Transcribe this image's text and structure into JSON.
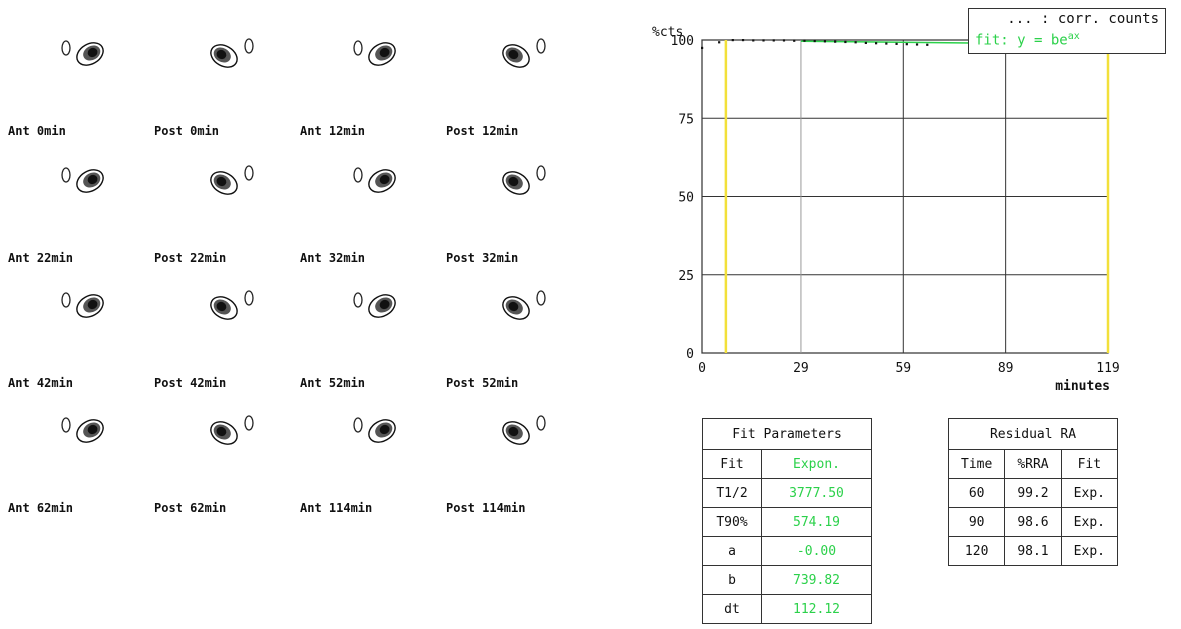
{
  "thumbnails": [
    {
      "label": "Ant 0min",
      "view": "ant"
    },
    {
      "label": "Post 0min",
      "view": "post"
    },
    {
      "label": "Ant 12min",
      "view": "ant"
    },
    {
      "label": "Post 12min",
      "view": "post"
    },
    {
      "label": "Ant 22min",
      "view": "ant"
    },
    {
      "label": "Post 22min",
      "view": "post"
    },
    {
      "label": "Ant 32min",
      "view": "ant"
    },
    {
      "label": "Post 32min",
      "view": "post"
    },
    {
      "label": "Ant 42min",
      "view": "ant"
    },
    {
      "label": "Post 42min",
      "view": "post"
    },
    {
      "label": "Ant 52min",
      "view": "ant"
    },
    {
      "label": "Post 52min",
      "view": "post"
    },
    {
      "label": "Ant 62min",
      "view": "ant"
    },
    {
      "label": "Post 62min",
      "view": "post"
    },
    {
      "label": "Ant 114min",
      "view": "ant"
    },
    {
      "label": "Post 114min",
      "view": "post"
    }
  ],
  "chart_data": {
    "type": "scatter",
    "ylabel": "%cts",
    "xlabel": "minutes",
    "xlim": [
      0,
      119
    ],
    "ylim": [
      0,
      100
    ],
    "x_ticks": [
      0,
      29,
      59,
      89,
      119
    ],
    "x_tick_labels": [
      "0",
      "29",
      "59",
      "89",
      "119"
    ],
    "y_ticks": [
      0,
      25,
      50,
      75,
      100
    ],
    "y_tick_labels": [
      "0",
      "25",
      "50",
      "75",
      "100"
    ],
    "grid": true,
    "legend_position": "top-right",
    "legend": {
      "counts_label": "... : corr. counts",
      "fit_label": "fit: y = be",
      "fit_sup": "ax"
    },
    "counts_color": "#111111",
    "fit_color": "#2bd14a",
    "marker_color": "#f2e03a",
    "markers_x": [
      7,
      119
    ],
    "series": [
      {
        "name": "corr. counts",
        "x": [
          0,
          5,
          9,
          12,
          15,
          18,
          21,
          24,
          27,
          30,
          33,
          36,
          39,
          42,
          45,
          48,
          51,
          54,
          57,
          60,
          63,
          66
        ],
        "y": [
          97.5,
          99.3,
          100,
          100,
          99.9,
          99.9,
          99.9,
          99.9,
          99.8,
          99.8,
          99.7,
          99.6,
          99.5,
          99.4,
          99.3,
          99.1,
          99,
          98.9,
          98.8,
          98.7,
          98.6,
          98.5
        ]
      },
      {
        "name": "fit",
        "x": [
          29,
          119
        ],
        "y": [
          99.6,
          98.6
        ]
      }
    ]
  },
  "fit_parameters": {
    "title": "Fit Parameters",
    "rows": [
      {
        "key": "Fit",
        "value": "Expon."
      },
      {
        "key": "T1/2",
        "value": "3777.50"
      },
      {
        "key": "T90%",
        "value": "574.19"
      },
      {
        "key": "a",
        "value": "-0.00"
      },
      {
        "key": "b",
        "value": "739.82"
      },
      {
        "key": "dt",
        "value": "112.12"
      }
    ]
  },
  "residual": {
    "title": "Residual RA",
    "headers": [
      "Time",
      "%RRA",
      "Fit"
    ],
    "rows": [
      [
        "60",
        "99.2",
        "Exp."
      ],
      [
        "90",
        "98.6",
        "Exp."
      ],
      [
        "120",
        "98.1",
        "Exp."
      ]
    ]
  }
}
